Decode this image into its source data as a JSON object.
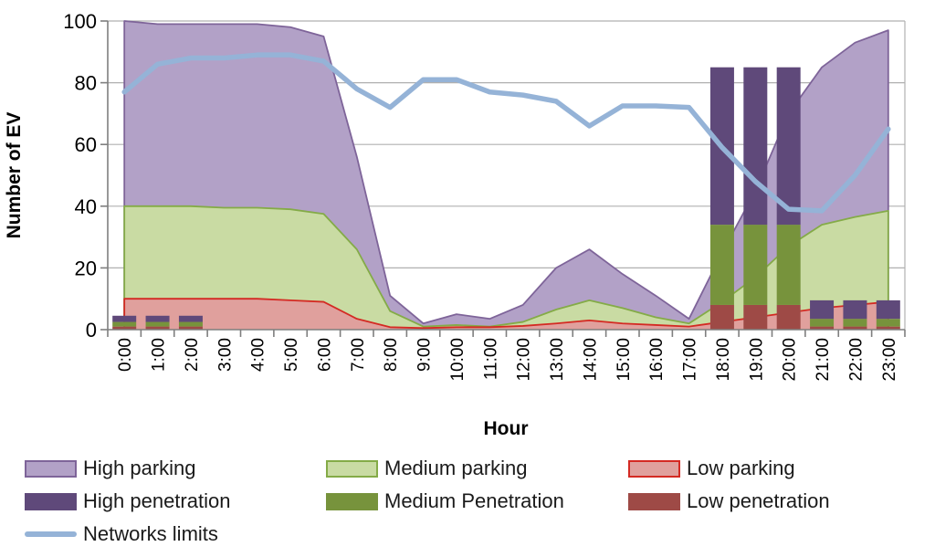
{
  "chart_data": {
    "type": "combo-area-bar-line",
    "title": "",
    "xlabel": "Hour",
    "ylabel": "Number of EV",
    "ylim": [
      0,
      100
    ],
    "yticks": [
      0,
      20,
      40,
      60,
      80,
      100
    ],
    "grid": "horizontal",
    "legend_position": "bottom-left-3-columns",
    "categories": [
      "0:00",
      "1:00",
      "2:00",
      "3:00",
      "4:00",
      "5:00",
      "6:00",
      "7:00",
      "8:00",
      "9:00",
      "10:00",
      "11:00",
      "12:00",
      "13:00",
      "14:00",
      "15:00",
      "16:00",
      "17:00",
      "18:00",
      "19:00",
      "20:00",
      "21:00",
      "22:00",
      "23:00"
    ],
    "series": [
      {
        "name": "High parking",
        "type": "area",
        "fill": "#b2a1c7",
        "border": "#7e6499",
        "values": [
          100,
          99,
          99,
          99,
          99,
          98,
          95,
          56,
          11,
          2,
          5,
          3.5,
          8,
          20,
          26,
          18,
          11,
          3.5,
          25,
          45,
          70,
          85,
          93,
          97
        ]
      },
      {
        "name": "Medium parking",
        "type": "area",
        "fill": "#c9dba3",
        "border": "#84ab47",
        "values": [
          40,
          40,
          40,
          39.5,
          39.5,
          39,
          37.5,
          26,
          6,
          1,
          1.5,
          1,
          2.5,
          6.5,
          9.5,
          7,
          4,
          2,
          9,
          17,
          27,
          34,
          36.5,
          38.5
        ]
      },
      {
        "name": "Low parking",
        "type": "area",
        "fill": "#e0a09d",
        "border": "#d42a23",
        "values": [
          10,
          10,
          10,
          10,
          10,
          9.5,
          9,
          3.5,
          0.8,
          0.5,
          0.8,
          0.8,
          1.2,
          2,
          3,
          2,
          1.5,
          1,
          2.5,
          4,
          5.5,
          7,
          8,
          9
        ]
      },
      {
        "name": "Low penetration",
        "type": "bar",
        "fill": "#9e4a46",
        "values": [
          1,
          1,
          1,
          0,
          0,
          0,
          0,
          0,
          0,
          0,
          0,
          0,
          0,
          0,
          0,
          0,
          0,
          0,
          8,
          8,
          8,
          1,
          1,
          1
        ]
      },
      {
        "name": "Medium Penetration",
        "type": "bar",
        "fill": "#77933c",
        "values": [
          1.5,
          1.5,
          1.5,
          0,
          0,
          0,
          0,
          0,
          0,
          0,
          0,
          0,
          0,
          0,
          0,
          0,
          0,
          0,
          26,
          26,
          26,
          2.5,
          2.5,
          2.5
        ]
      },
      {
        "name": "High penetration",
        "type": "bar",
        "fill": "#5f497a",
        "values": [
          2,
          2,
          2,
          0,
          0,
          0,
          0,
          0,
          0,
          0,
          0,
          0,
          0,
          0,
          0,
          0,
          0,
          0,
          51,
          51,
          51,
          6,
          6,
          6
        ]
      },
      {
        "name": "Networks limits",
        "type": "line",
        "color": "#95b3d7",
        "values": [
          77,
          86,
          88,
          88,
          89,
          89,
          87,
          78,
          72,
          81,
          81,
          77,
          76,
          74,
          66,
          72.5,
          72.5,
          72,
          59,
          48,
          39,
          38.5,
          50,
          65
        ]
      }
    ],
    "bar_stack_order": [
      "Low penetration",
      "Medium Penetration",
      "High penetration"
    ]
  },
  "legend": {
    "items": [
      {
        "series": "High parking",
        "col": 0,
        "row": 0
      },
      {
        "series": "High penetration",
        "col": 0,
        "row": 1
      },
      {
        "series": "Networks limits",
        "col": 0,
        "row": 2
      },
      {
        "series": "Medium parking",
        "col": 1,
        "row": 0
      },
      {
        "series": "Medium Penetration",
        "col": 1,
        "row": 1
      },
      {
        "series": "Low parking",
        "col": 2,
        "row": 0
      },
      {
        "series": "Low penetration",
        "col": 2,
        "row": 1
      }
    ]
  },
  "colors": {
    "axis": "#7f7f7f",
    "grid": "#b0b0b0",
    "text": "#000000",
    "background": "#ffffff"
  }
}
